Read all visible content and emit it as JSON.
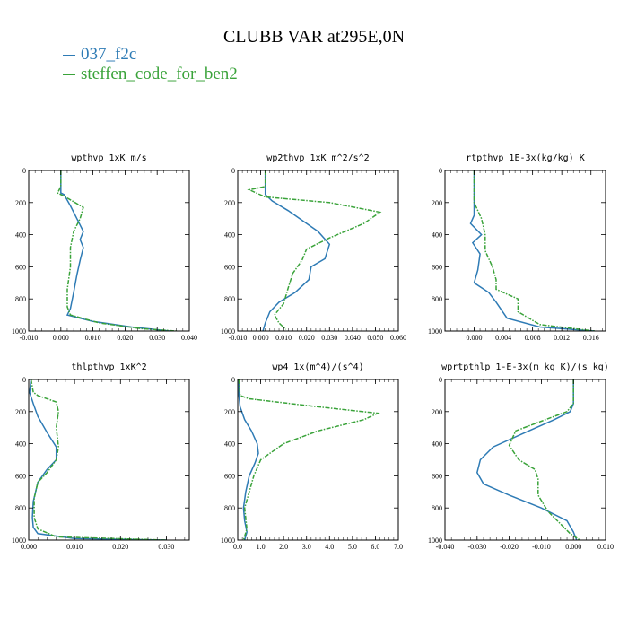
{
  "title": "CLUBB VAR at295E,0N",
  "legend": [
    {
      "name": "037_f2c",
      "color": "#2e7bb5"
    },
    {
      "name": "steffen_code_for_ben2",
      "color": "#3aa33a"
    }
  ],
  "chart_data": [
    {
      "type": "line",
      "title": "wpthvp   1xK m/s",
      "xlim": [
        -0.01,
        0.04
      ],
      "xticks": [
        "-0.010",
        "0.000",
        "0.010",
        "0.020",
        "0.030",
        "0.040"
      ],
      "ylim": [
        1000,
        0
      ],
      "yticks": [
        "0",
        "200",
        "400",
        "600",
        "800",
        "1000"
      ],
      "series": [
        {
          "name": "037_f2c",
          "color": "#2e7bb5",
          "x": [
            0.0,
            0.0,
            0.0,
            0.001,
            0.003,
            0.005,
            0.007,
            0.006,
            0.007,
            0.006,
            0.005,
            0.004,
            0.003,
            0.002,
            0.01,
            0.022,
            0.034
          ],
          "y": [
            0,
            100,
            140,
            150,
            220,
            300,
            380,
            430,
            480,
            560,
            650,
            760,
            860,
            900,
            940,
            975,
            1000
          ]
        },
        {
          "name": "steffen_code_for_ben2",
          "color": "#3aa33a",
          "x": [
            0.0,
            0.0,
            -0.001,
            0.001,
            0.007,
            0.006,
            0.004,
            0.003,
            0.003,
            0.002,
            0.002,
            0.003,
            0.012,
            0.025,
            0.036
          ],
          "y": [
            0,
            100,
            140,
            160,
            230,
            300,
            380,
            480,
            600,
            740,
            850,
            900,
            950,
            985,
            1000
          ]
        }
      ]
    },
    {
      "type": "line",
      "title": "wp2thvp   1xK m^2/s^2",
      "xlim": [
        -0.01,
        0.06
      ],
      "xticks": [
        "-0.010",
        "0.000",
        "0.010",
        "0.020",
        "0.030",
        "0.040",
        "0.050",
        "0.060"
      ],
      "ylim": [
        1000,
        0
      ],
      "yticks": [
        "0",
        "200",
        "400",
        "600",
        "800",
        "1000"
      ],
      "series": [
        {
          "name": "037_f2c",
          "color": "#2e7bb5",
          "x": [
            0.002,
            0.002,
            0.002,
            0.005,
            0.012,
            0.018,
            0.025,
            0.03,
            0.028,
            0.022,
            0.021,
            0.015,
            0.008,
            0.004,
            0.002,
            0.001
          ],
          "y": [
            0,
            100,
            150,
            190,
            250,
            310,
            380,
            460,
            550,
            600,
            680,
            760,
            820,
            880,
            950,
            1000
          ]
        },
        {
          "name": "steffen_code_for_ben2",
          "color": "#3aa33a",
          "x": [
            0.002,
            0.002,
            -0.005,
            0.002,
            0.03,
            0.052,
            0.045,
            0.03,
            0.02,
            0.018,
            0.014,
            0.012,
            0.01,
            0.006,
            0.008,
            0.011
          ],
          "y": [
            0,
            100,
            120,
            165,
            200,
            260,
            330,
            420,
            490,
            560,
            640,
            730,
            830,
            900,
            950,
            990
          ]
        }
      ]
    },
    {
      "type": "line",
      "title": "rtpthvp   1E-3x(kg/kg) K",
      "xlim": [
        -0.004,
        0.018
      ],
      "xticks": [
        "0.000",
        "0.004",
        "0.008",
        "0.012",
        "0.016"
      ],
      "ylim": [
        1000,
        0
      ],
      "yticks": [
        "0",
        "200",
        "400",
        "600",
        "800",
        "1000"
      ],
      "series": [
        {
          "name": "037_f2c",
          "color": "#2e7bb5",
          "x": [
            0.0,
            0.0,
            0.0,
            0.0,
            -0.0005,
            0.001,
            -0.0002,
            0.0008,
            0.0005,
            0.0,
            0.002,
            0.003,
            0.0045,
            0.009,
            0.0165
          ],
          "y": [
            0,
            100,
            200,
            280,
            330,
            400,
            450,
            520,
            620,
            700,
            760,
            820,
            920,
            975,
            1000
          ]
        },
        {
          "name": "steffen_code_for_ben2",
          "color": "#3aa33a",
          "x": [
            0.0,
            0.0,
            0.0,
            0.001,
            0.0015,
            0.0015,
            0.0025,
            0.003,
            0.003,
            0.006,
            0.006,
            0.009,
            0.0165
          ],
          "y": [
            0,
            100,
            200,
            300,
            400,
            500,
            600,
            680,
            740,
            800,
            880,
            960,
            1000
          ]
        }
      ]
    },
    {
      "type": "line",
      "title": "thlpthvp   1xK^2",
      "xlim": [
        0.0,
        0.035
      ],
      "xticks": [
        "0.000",
        "0.010",
        "0.020",
        "0.030"
      ],
      "ylim": [
        1000,
        0
      ],
      "yticks": [
        "0",
        "200",
        "400",
        "600",
        "800",
        "1000"
      ],
      "series": [
        {
          "name": "037_f2c",
          "color": "#2e7bb5",
          "x": [
            0.0005,
            0.0002,
            0.001,
            0.002,
            0.004,
            0.006,
            0.006,
            0.004,
            0.002,
            0.001,
            0.0008,
            0.001,
            0.002,
            0.01,
            0.03
          ],
          "y": [
            0,
            80,
            150,
            230,
            330,
            420,
            500,
            560,
            640,
            760,
            860,
            920,
            960,
            990,
            1000
          ]
        },
        {
          "name": "steffen_code_for_ben2",
          "color": "#3aa33a",
          "x": [
            0.0005,
            0.001,
            0.002,
            0.006,
            0.0065,
            0.006,
            0.0065,
            0.006,
            0.004,
            0.002,
            0.0012,
            0.0012,
            0.002,
            0.006,
            0.03
          ],
          "y": [
            0,
            80,
            100,
            140,
            200,
            300,
            420,
            500,
            580,
            640,
            740,
            860,
            930,
            980,
            1000
          ]
        }
      ]
    },
    {
      "type": "line",
      "title": "wp4   1x(m^4)/(s^4)",
      "xlim": [
        0.0,
        7.0
      ],
      "xticks": [
        "0.0",
        "1.0",
        "2.0",
        "3.0",
        "4.0",
        "5.0",
        "6.0",
        "7.0"
      ],
      "ylim": [
        1000,
        0
      ],
      "yticks": [
        "0",
        "200",
        "400",
        "600",
        "800",
        "1000"
      ],
      "series": [
        {
          "name": "037_f2c",
          "color": "#2e7bb5",
          "x": [
            0.05,
            0.05,
            0.1,
            0.3,
            0.6,
            0.85,
            0.9,
            0.75,
            0.5,
            0.35,
            0.25,
            0.3,
            0.4,
            0.3
          ],
          "y": [
            0,
            100,
            170,
            250,
            320,
            400,
            460,
            520,
            600,
            700,
            800,
            880,
            950,
            1000
          ]
        },
        {
          "name": "steffen_code_for_ben2",
          "color": "#3aa33a",
          "x": [
            0.05,
            0.1,
            0.5,
            3.5,
            6.1,
            5.5,
            3.5,
            2.0,
            1.0,
            0.7,
            0.5,
            0.3,
            0.4,
            0.25
          ],
          "y": [
            0,
            100,
            120,
            170,
            210,
            250,
            320,
            400,
            500,
            600,
            700,
            800,
            930,
            1000
          ]
        }
      ]
    },
    {
      "type": "line",
      "title": "wprtpthlp   1-E-3x(m kg K)/(s kg)",
      "xlim": [
        -0.04,
        0.01
      ],
      "xticks": [
        "-0.040",
        "-0.030",
        "-0.020",
        "-0.010",
        "0.000",
        "0.010"
      ],
      "ylim": [
        1000,
        0
      ],
      "yticks": [
        "0",
        "200",
        "400",
        "600",
        "800",
        "1000"
      ],
      "series": [
        {
          "name": "037_f2c",
          "color": "#2e7bb5",
          "x": [
            0.0,
            0.0,
            -0.001,
            -0.006,
            -0.015,
            -0.025,
            -0.029,
            -0.03,
            -0.028,
            -0.02,
            -0.01,
            -0.002,
            0.0,
            0.001
          ],
          "y": [
            0,
            150,
            200,
            250,
            330,
            420,
            500,
            580,
            650,
            720,
            800,
            880,
            950,
            1000
          ]
        },
        {
          "name": "steffen_code_for_ben2",
          "color": "#3aa33a",
          "x": [
            0.0,
            0.0,
            -0.002,
            -0.01,
            -0.018,
            -0.02,
            -0.017,
            -0.012,
            -0.011,
            -0.011,
            -0.008,
            -0.004,
            -0.001,
            0.002
          ],
          "y": [
            0,
            150,
            200,
            260,
            320,
            410,
            500,
            560,
            620,
            720,
            820,
            900,
            960,
            1000
          ]
        }
      ]
    }
  ]
}
